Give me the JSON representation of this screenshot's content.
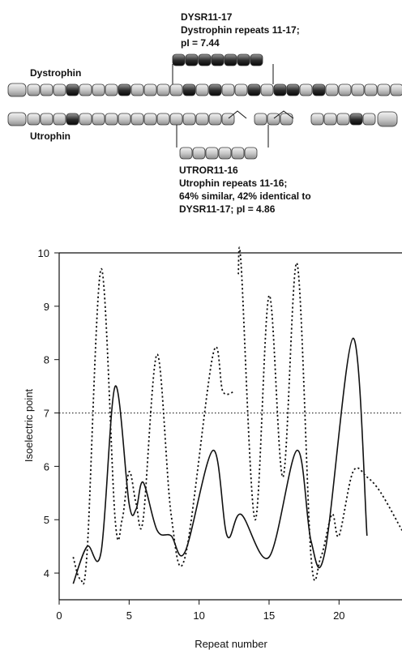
{
  "diagram": {
    "dysr_title": "DYSR11-17",
    "dysr_line2": "Dystrophin repeats 11-17;",
    "dysr_line3": "pI = 7.44",
    "dystrophin_label": "Dystrophin",
    "utrophin_label": "Utrophin",
    "utror_title": "UTROR11-16",
    "utror_line2": "Utrophin repeats 11-16;",
    "utror_line3": "64% similar, 42% identical to",
    "utror_line4": "DYSR11-17; pI = 4.86",
    "dystrophin_repeat_shades": [
      "l",
      "l",
      "l",
      "d",
      "l",
      "l",
      "l",
      "d",
      "l",
      "l",
      "l",
      "l",
      "d",
      "l",
      "d",
      "l",
      "l",
      "d",
      "l",
      "d",
      "d",
      "l",
      "d",
      "l",
      "l",
      "l",
      "l",
      "l",
      "l",
      "l"
    ],
    "dysr_fragment_shades": [
      "d",
      "d",
      "d",
      "d",
      "d",
      "d",
      "d"
    ],
    "utrophin_repeat_shades": [
      "l",
      "l",
      "l",
      "d",
      "l",
      "l",
      "l",
      "l",
      "l",
      "l",
      "l",
      "l",
      "l",
      "l",
      "l",
      "l",
      "l",
      "l",
      "l",
      "l",
      "l",
      "l",
      "d",
      "l"
    ],
    "utror_fragment_shades": [
      "l",
      "l",
      "l",
      "l",
      "l",
      "l"
    ]
  },
  "chart_data": {
    "type": "line",
    "xlabel": "Repeat number",
    "ylabel": "Isoelectric point",
    "xlim": [
      0,
      24.5
    ],
    "ylim": [
      3.5,
      10
    ],
    "x_ticks": [
      0,
      5,
      10,
      15,
      20
    ],
    "y_ticks": [
      4,
      5,
      6,
      7,
      8,
      9,
      10
    ],
    "reference_line": {
      "y": 7.0,
      "style": "dotted"
    },
    "series": [
      {
        "style": "solid",
        "x": [
          1,
          2,
          3,
          4,
          5,
          5.5,
          6,
          7,
          8,
          9,
          11,
          12,
          13,
          15,
          17,
          18,
          19,
          21,
          22
        ],
        "y": [
          3.8,
          4.5,
          4.4,
          7.5,
          5.3,
          5.2,
          5.7,
          4.8,
          4.7,
          4.4,
          6.3,
          4.7,
          5.1,
          4.3,
          6.3,
          4.6,
          4.4,
          8.4,
          4.7
        ]
      },
      {
        "style": "dotted",
        "x": [
          1,
          1.5,
          2,
          3,
          4,
          4.5,
          5,
          5.5,
          6,
          7,
          8,
          9,
          11,
          11.7,
          12.5
        ],
        "y": [
          4.3,
          3.9,
          4.4,
          9.7,
          5.0,
          5.0,
          5.9,
          5.3,
          5.0,
          8.1,
          5.1,
          4.3,
          8.1,
          7.4,
          7.4
        ]
      },
      {
        "style": "dotted",
        "x": [
          12.8,
          13,
          14,
          15,
          16,
          17,
          18,
          18.7,
          19.5,
          20,
          21,
          22,
          23,
          24.5
        ],
        "y": [
          9.6,
          9.8,
          5.0,
          9.2,
          5.8,
          9.8,
          4.3,
          4.3,
          5.1,
          4.7,
          5.9,
          5.8,
          5.5,
          4.8
        ]
      }
    ]
  }
}
